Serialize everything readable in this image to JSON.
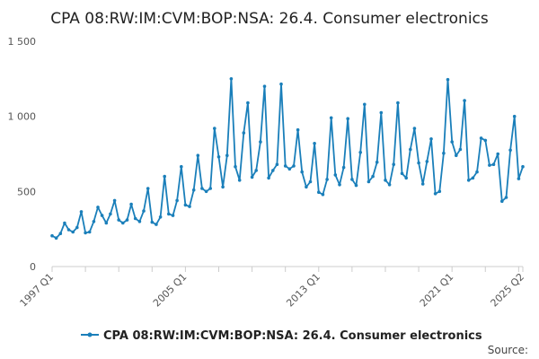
{
  "chart_data": {
    "type": "line",
    "title": "CPA 08:RW:IM:CVM:BOP:NSA: 26.4. Consumer electronics",
    "xlabel": "",
    "ylabel": "",
    "ylim": [
      0,
      1500
    ],
    "yticks": [
      0,
      500,
      1000,
      1500
    ],
    "ytick_labels": [
      "0",
      "500",
      "1 000",
      "1 500"
    ],
    "xtick_labels": [
      "1997 Q1",
      "2005 Q1",
      "2013 Q1",
      "2021 Q1",
      "2025 Q2"
    ],
    "xtick_positions": [
      "1997 Q1",
      "2005 Q1",
      "2013 Q1",
      "2021 Q1",
      "2025 Q2"
    ],
    "legend_position": "bottom",
    "grid": false,
    "color": "#1a7fba",
    "source_label": "Source:",
    "x": [
      "1997 Q1",
      "1997 Q2",
      "1997 Q3",
      "1997 Q4",
      "1998 Q1",
      "1998 Q2",
      "1998 Q3",
      "1998 Q4",
      "1999 Q1",
      "1999 Q2",
      "1999 Q3",
      "1999 Q4",
      "2000 Q1",
      "2000 Q2",
      "2000 Q3",
      "2000 Q4",
      "2001 Q1",
      "2001 Q2",
      "2001 Q3",
      "2001 Q4",
      "2002 Q1",
      "2002 Q2",
      "2002 Q3",
      "2002 Q4",
      "2003 Q1",
      "2003 Q2",
      "2003 Q3",
      "2003 Q4",
      "2004 Q1",
      "2004 Q2",
      "2004 Q3",
      "2004 Q4",
      "2005 Q1",
      "2005 Q2",
      "2005 Q3",
      "2005 Q4",
      "2006 Q1",
      "2006 Q2",
      "2006 Q3",
      "2006 Q4",
      "2007 Q1",
      "2007 Q2",
      "2007 Q3",
      "2007 Q4",
      "2008 Q1",
      "2008 Q2",
      "2008 Q3",
      "2008 Q4",
      "2009 Q1",
      "2009 Q2",
      "2009 Q3",
      "2009 Q4",
      "2010 Q1",
      "2010 Q2",
      "2010 Q3",
      "2010 Q4",
      "2011 Q1",
      "2011 Q2",
      "2011 Q3",
      "2011 Q4",
      "2012 Q1",
      "2012 Q2",
      "2012 Q3",
      "2012 Q4",
      "2013 Q1",
      "2013 Q2",
      "2013 Q3",
      "2013 Q4",
      "2014 Q1",
      "2014 Q2",
      "2014 Q3",
      "2014 Q4",
      "2015 Q1",
      "2015 Q2",
      "2015 Q3",
      "2015 Q4",
      "2016 Q1",
      "2016 Q2",
      "2016 Q3",
      "2016 Q4",
      "2017 Q1",
      "2017 Q2",
      "2017 Q3",
      "2017 Q4",
      "2018 Q1",
      "2018 Q2",
      "2018 Q3",
      "2018 Q4",
      "2019 Q1",
      "2019 Q2",
      "2019 Q3",
      "2019 Q4",
      "2020 Q1",
      "2020 Q2",
      "2020 Q3",
      "2020 Q4",
      "2021 Q1",
      "2021 Q2",
      "2021 Q3",
      "2021 Q4",
      "2022 Q1",
      "2022 Q2",
      "2022 Q3",
      "2022 Q4",
      "2023 Q1",
      "2023 Q2",
      "2023 Q3",
      "2023 Q4",
      "2024 Q1",
      "2024 Q2",
      "2024 Q3",
      "2024 Q4",
      "2025 Q1",
      "2025 Q2"
    ],
    "series": [
      {
        "name": "CPA 08:RW:IM:CVM:BOP:NSA: 26.4. Consumer electronics",
        "values": [
          205,
          190,
          220,
          290,
          245,
          230,
          260,
          365,
          225,
          230,
          300,
          395,
          340,
          290,
          350,
          440,
          310,
          290,
          310,
          415,
          320,
          300,
          370,
          520,
          295,
          280,
          330,
          600,
          350,
          340,
          440,
          665,
          410,
          400,
          510,
          740,
          520,
          500,
          520,
          920,
          730,
          530,
          740,
          1250,
          665,
          575,
          890,
          1090,
          595,
          640,
          830,
          1200,
          590,
          640,
          680,
          1215,
          670,
          650,
          670,
          910,
          630,
          530,
          565,
          820,
          495,
          480,
          580,
          990,
          610,
          545,
          660,
          985,
          580,
          540,
          760,
          1080,
          565,
          600,
          695,
          1025,
          575,
          545,
          680,
          1090,
          620,
          590,
          780,
          920,
          690,
          550,
          700,
          850,
          485,
          500,
          755,
          1245,
          830,
          740,
          780,
          1105,
          575,
          590,
          630,
          855,
          840,
          675,
          680,
          750,
          435,
          460,
          775,
          1000,
          585,
          665
        ]
      }
    ]
  }
}
